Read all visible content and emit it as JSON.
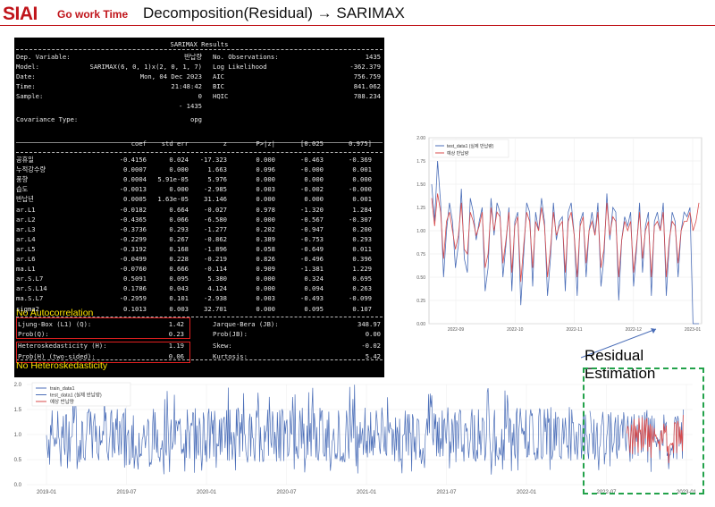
{
  "header": {
    "logo": "SIAI",
    "brand": "Go work Time",
    "title": "Decomposition(Residual)  → SARIMAX"
  },
  "summary": {
    "heading": "SARIMAX Results",
    "info_left": [
      {
        "label": "Dep. Variable:",
        "value": "반납량"
      },
      {
        "label": "Model:",
        "value": "SARIMAX(6, 0, 1)x(2, 0, 1, 7)"
      },
      {
        "label": "Date:",
        "value": "Mon, 04 Dec 2023"
      },
      {
        "label": "Time:",
        "value": "21:48:42"
      },
      {
        "label": "Sample:",
        "value": "0"
      },
      {
        "label": "",
        "value": "- 1435"
      },
      {
        "label": "Covariance Type:",
        "value": "opg"
      }
    ],
    "info_right": [
      {
        "label": "No. Observations:",
        "value": "1435"
      },
      {
        "label": "Log Likelihood",
        "value": "-362.379"
      },
      {
        "label": "AIC",
        "value": "756.759"
      },
      {
        "label": "BIC",
        "value": "841.062"
      },
      {
        "label": "HQIC",
        "value": "788.234"
      }
    ],
    "coef_headers": [
      "coef",
      "std err",
      "z",
      "P>|z|",
      "[0.025",
      "0.975]"
    ],
    "coef_rows": [
      [
        "공휴일",
        "-0.4156",
        "0.024",
        "-17.323",
        "0.000",
        "-0.463",
        "-0.369"
      ],
      [
        "누적강수량",
        "0.0007",
        "0.000",
        "1.663",
        "0.096",
        "-0.000",
        "0.001"
      ],
      [
        "풍향",
        "0.0004",
        "5.91e-05",
        "5.976",
        "0.000",
        "0.000",
        "0.000"
      ],
      [
        "습도",
        "-0.0013",
        "0.000",
        "-2.985",
        "0.003",
        "-0.002",
        "-0.000"
      ],
      [
        "반납년",
        "0.0005",
        "1.63e-05",
        "31.146",
        "0.000",
        "0.000",
        "0.001"
      ],
      [
        "ar.L1",
        "-0.0182",
        "0.664",
        "-0.027",
        "0.978",
        "-1.320",
        "1.284"
      ],
      [
        "ar.L2",
        "-0.4365",
        "0.066",
        "-6.580",
        "0.000",
        "-0.567",
        "-0.307"
      ],
      [
        "ar.L3",
        "-0.3736",
        "0.293",
        "-1.277",
        "0.202",
        "-0.947",
        "0.200"
      ],
      [
        "ar.L4",
        "-0.2299",
        "0.267",
        "-0.862",
        "0.389",
        "-0.753",
        "0.293"
      ],
      [
        "ar.L5",
        "-0.3192",
        "0.168",
        "-1.896",
        "0.058",
        "-0.649",
        "0.011"
      ],
      [
        "ar.L6",
        "-0.0499",
        "0.228",
        "-0.219",
        "0.826",
        "-0.496",
        "0.396"
      ],
      [
        "ma.L1",
        "-0.0760",
        "0.666",
        "-0.114",
        "0.909",
        "-1.381",
        "1.229"
      ],
      [
        "ar.S.L7",
        "0.5091",
        "0.095",
        "5.380",
        "0.000",
        "0.324",
        "0.695"
      ],
      [
        "ar.S.L14",
        "0.1786",
        "0.043",
        "4.124",
        "0.000",
        "0.094",
        "0.263"
      ],
      [
        "ma.S.L7",
        "-0.2959",
        "0.101",
        "-2.938",
        "0.003",
        "-0.493",
        "-0.099"
      ],
      [
        "sigma2",
        "0.1013",
        "0.003",
        "32.701",
        "0.000",
        "0.095",
        "0.107"
      ]
    ],
    "diag_left": [
      {
        "label": "Ljung-Box (L1) (Q):",
        "value": "1.42"
      },
      {
        "label": "Prob(Q):",
        "value": "0.23"
      },
      {
        "label": "Heteroskedasticity (H):",
        "value": "1.19"
      },
      {
        "label": "Prob(H) (two-sided):",
        "value": "0.06"
      }
    ],
    "diag_right": [
      {
        "label": "Jarque-Bera (JB):",
        "value": "348.97"
      },
      {
        "label": "Prob(JB):",
        "value": "0.00"
      },
      {
        "label": "Skew:",
        "value": "-0.02"
      },
      {
        "label": "Kurtosis:",
        "value": "5.42"
      }
    ],
    "annotation_autocorr": "No Autocorrelation",
    "annotation_hetero": "No Heteroskedasticity"
  },
  "residual_label": "Residual Estimation",
  "colors": {
    "brand": "#c0141a",
    "actual": "#4b6eb8",
    "predicted": "#d94a4a",
    "highlight": "#e02020",
    "annotation": "#ffe600",
    "dashed_box": "#22a24a"
  },
  "chart_data": [
    {
      "type": "line",
      "legend": [
        "test_data1 (실제 반납량)",
        "예상 반납량"
      ],
      "legend_position": "top-left",
      "x_ticks": [
        "2022-09",
        "2022-10",
        "2022-11",
        "2022-12",
        "2023-01"
      ],
      "y_ticks": [
        "0.00",
        "0.25",
        "0.50",
        "0.75",
        "1.00",
        "1.25",
        "1.50",
        "1.75",
        "2.00"
      ],
      "ylim": [
        0,
        2.0
      ],
      "grid": true,
      "series": [
        {
          "name": "test_data1 (실제 반납량)",
          "values": [
            1.5,
            1.1,
            1.75,
            1.3,
            0.5,
            1.0,
            1.3,
            1.1,
            0.6,
            0.85,
            1.45,
            0.7,
            0.55,
            1.35,
            1.2,
            0.9,
            1.1,
            1.25,
            0.35,
            0.6,
            1.35,
            0.95,
            1.3,
            1.2,
            0.5,
            0.85,
            1.25,
            0.35,
            1.1,
            1.2,
            0.2,
            0.75,
            1.3,
            1.2,
            0.4,
            1.2,
            1.0,
            1.35,
            1.1,
            0.3,
            0.7,
            1.3,
            0.9,
            1.1,
            1.15,
            0.35,
            1.2,
            1.3,
            0.95,
            0.3,
            1.1,
            1.2,
            0.5,
            1.0,
            1.2,
            0.95,
            1.3,
            0.4,
            0.7,
            1.4,
            0.9,
            1.25,
            1.2,
            0.25,
            0.9,
            1.15,
            1.05,
            1.2,
            0.4,
            0.8,
            1.3,
            0.55,
            1.05,
            1.2,
            0.3,
            1.1,
            1.2,
            1.0,
            1.3,
            0.3,
            0.85,
            1.2,
            1.1,
            0.5,
            1.0,
            1.2,
            1.15,
            1.25,
            0.0,
            0.0,
            0.0
          ]
        },
        {
          "name": "예상 반납량",
          "values": [
            1.35,
            1.05,
            1.4,
            1.2,
            0.7,
            1.1,
            1.2,
            1.0,
            0.8,
            0.95,
            1.3,
            0.8,
            0.75,
            1.2,
            1.1,
            0.95,
            1.05,
            1.2,
            0.6,
            0.75,
            1.25,
            1.0,
            1.2,
            1.15,
            0.65,
            0.9,
            1.2,
            0.55,
            1.05,
            1.15,
            0.45,
            0.85,
            1.2,
            1.1,
            0.6,
            1.1,
            1.0,
            1.25,
            1.05,
            0.5,
            0.8,
            1.2,
            0.95,
            1.05,
            1.1,
            0.55,
            1.1,
            1.2,
            0.95,
            0.5,
            1.05,
            1.15,
            0.65,
            1.0,
            1.1,
            0.95,
            1.2,
            0.6,
            0.8,
            1.3,
            0.95,
            1.15,
            1.1,
            0.5,
            0.9,
            1.1,
            1.0,
            1.1,
            0.55,
            0.85,
            1.2,
            0.7,
            1.0,
            1.1,
            0.5,
            1.05,
            1.1,
            1.0,
            1.2,
            0.5,
            0.9,
            1.1,
            1.05,
            0.65,
            1.0,
            1.1,
            1.1,
            1.2,
            1.0,
            1.1,
            1.3
          ]
        }
      ]
    },
    {
      "type": "line",
      "legend": [
        "train_data1",
        "test_data1 (실제 반납량)",
        "예상 반납량"
      ],
      "legend_position": "top-left",
      "x_ticks": [
        "2019-01",
        "2019-07",
        "2020-01",
        "2020-07",
        "2021-01",
        "2021-07",
        "2022-01",
        "2022-07",
        "2023-01"
      ],
      "y_ticks": [
        "0.0",
        "0.5",
        "1.0",
        "1.5",
        "2.0"
      ],
      "ylim": [
        0,
        2.0
      ],
      "grid": true
    }
  ]
}
